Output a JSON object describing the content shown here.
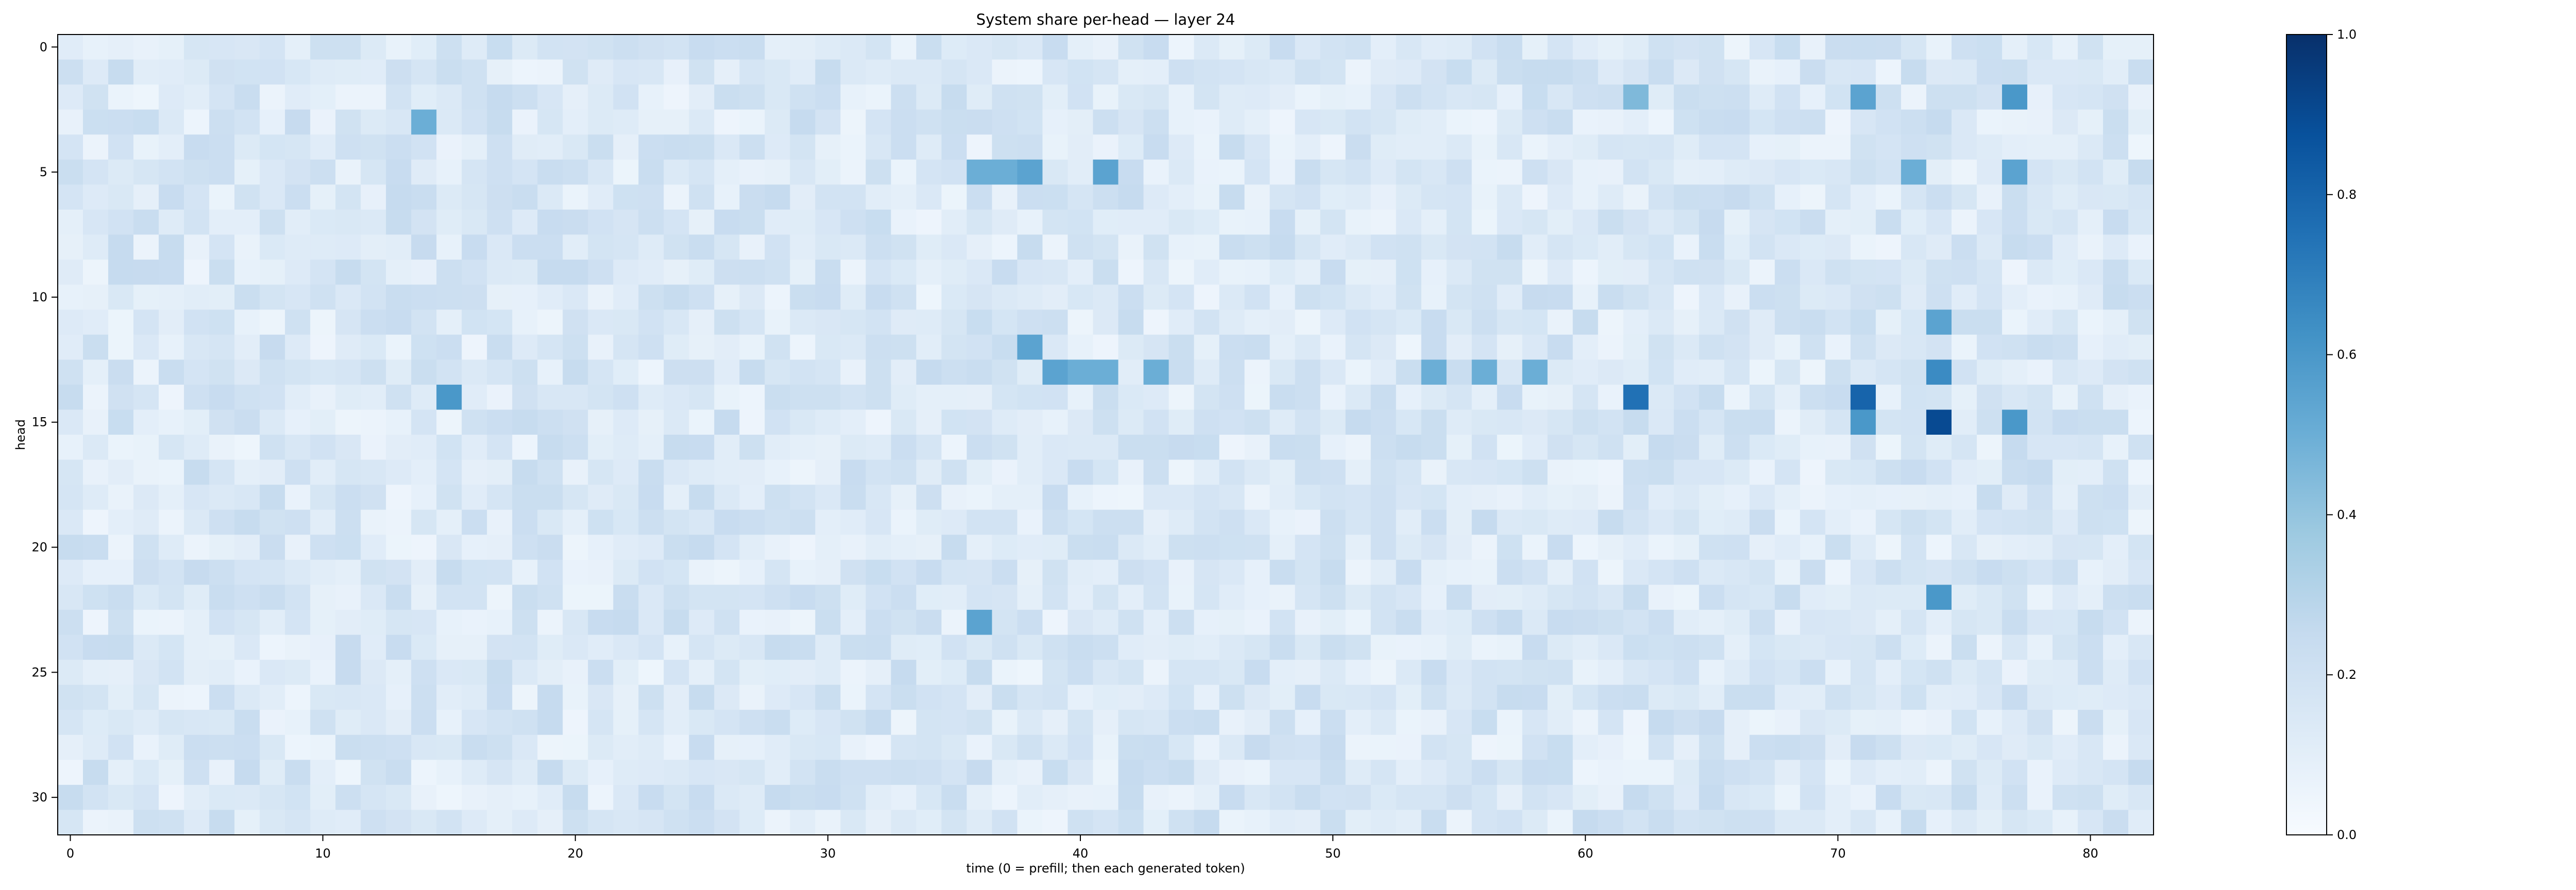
{
  "chart_data": {
    "type": "heatmap",
    "title": "System share per-head — layer 24",
    "xlabel": "time (0 = prefill; then each generated token)",
    "ylabel": "head",
    "x_range": [
      0,
      82
    ],
    "y_range": [
      0,
      31
    ],
    "x_ticks": [
      0,
      10,
      20,
      30,
      40,
      50,
      60,
      70,
      80
    ],
    "y_ticks": [
      0,
      5,
      10,
      15,
      20,
      25,
      30
    ],
    "colorbar": {
      "colormap": "Blues",
      "range": [
        0,
        1
      ],
      "ticks": [
        "0.0",
        "0.2",
        "0.4",
        "0.6",
        "0.8",
        "1.0"
      ],
      "color_low": "#f7fbff",
      "color_high": "#08306b"
    },
    "values_approx": {
      "background_range": [
        0.05,
        0.25
      ],
      "notable_cells": [
        {
          "head": 2,
          "time": 71,
          "value": 0.55
        },
        {
          "head": 2,
          "time": 77,
          "value": 0.6
        },
        {
          "head": 2,
          "time": 62,
          "value": 0.45
        },
        {
          "head": 3,
          "time": 14,
          "value": 0.5
        },
        {
          "head": 5,
          "time": 41,
          "value": 0.55
        },
        {
          "head": 5,
          "time": 36,
          "value": 0.5
        },
        {
          "head": 5,
          "time": 37,
          "value": 0.5
        },
        {
          "head": 5,
          "time": 38,
          "value": 0.55
        },
        {
          "head": 5,
          "time": 73,
          "value": 0.5
        },
        {
          "head": 5,
          "time": 77,
          "value": 0.55
        },
        {
          "head": 12,
          "time": 38,
          "value": 0.55
        },
        {
          "head": 13,
          "time": 39,
          "value": 0.55
        },
        {
          "head": 13,
          "time": 40,
          "value": 0.5
        },
        {
          "head": 13,
          "time": 41,
          "value": 0.5
        },
        {
          "head": 13,
          "time": 74,
          "value": 0.65
        },
        {
          "head": 13,
          "time": 54,
          "value": 0.5
        },
        {
          "head": 13,
          "time": 56,
          "value": 0.5
        },
        {
          "head": 13,
          "time": 58,
          "value": 0.5
        },
        {
          "head": 13,
          "time": 43,
          "value": 0.5
        },
        {
          "head": 14,
          "time": 15,
          "value": 0.6
        },
        {
          "head": 14,
          "time": 62,
          "value": 0.75
        },
        {
          "head": 14,
          "time": 71,
          "value": 0.8
        },
        {
          "head": 15,
          "time": 74,
          "value": 0.9
        },
        {
          "head": 15,
          "time": 71,
          "value": 0.6
        },
        {
          "head": 15,
          "time": 77,
          "value": 0.6
        },
        {
          "head": 11,
          "time": 74,
          "value": 0.55
        },
        {
          "head": 22,
          "time": 74,
          "value": 0.6
        },
        {
          "head": 23,
          "time": 36,
          "value": 0.55
        }
      ]
    }
  }
}
